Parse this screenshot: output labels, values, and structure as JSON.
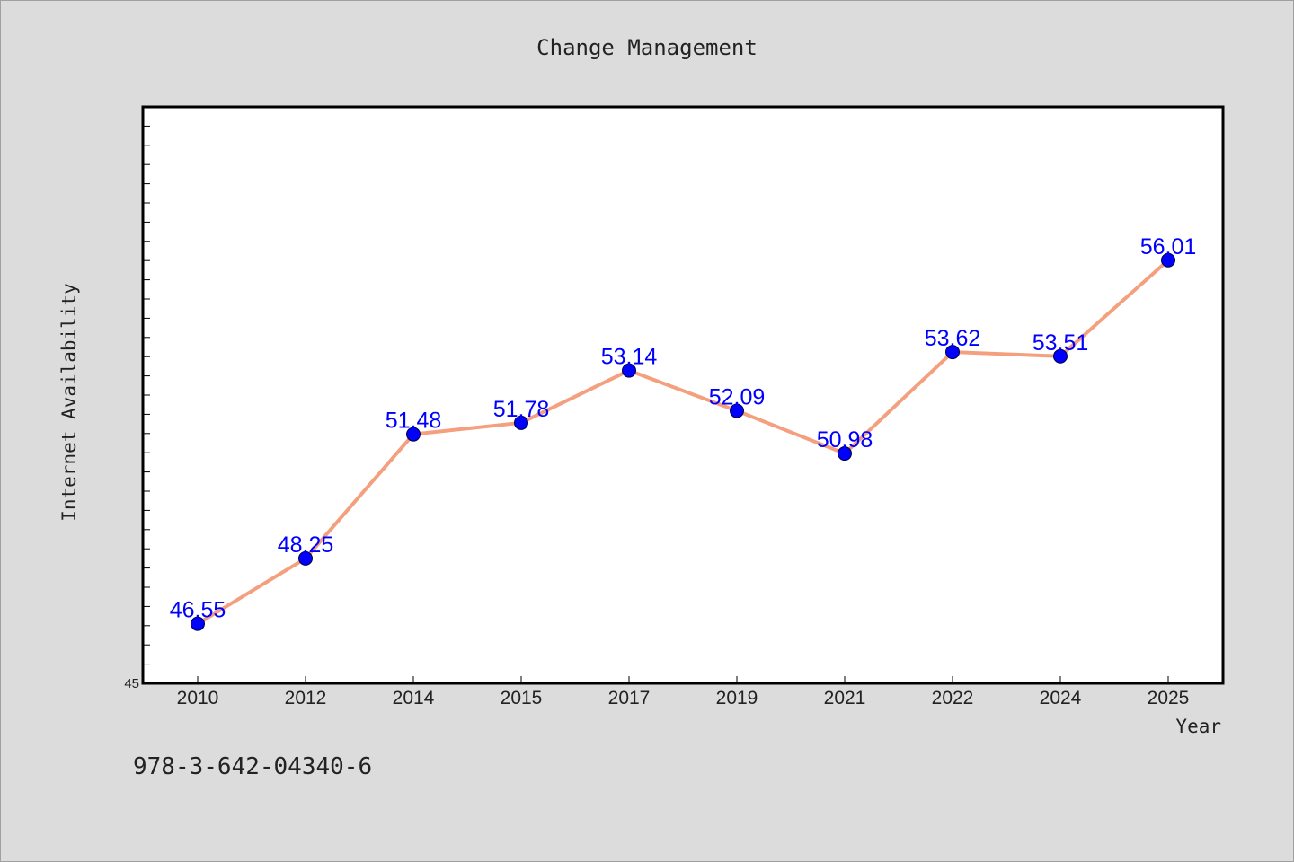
{
  "chart_data": {
    "type": "line",
    "title": "Change Management",
    "xlabel": "Year",
    "ylabel": "Internet Availability",
    "categories": [
      "2010",
      "2012",
      "2014",
      "2015",
      "2017",
      "2019",
      "2021",
      "2022",
      "2024",
      "2025"
    ],
    "series": [
      {
        "values": [
          46.55,
          48.25,
          51.48,
          51.78,
          53.14,
          52.09,
          50.98,
          53.62,
          53.51,
          56.01
        ],
        "line_color": "#f4a07e",
        "marker_color": "#0000ff"
      }
    ],
    "data_labels": [
      "46.55",
      "48.25",
      "51.48",
      "51.78",
      "53.14",
      "52.09",
      "50.98",
      "53.62",
      "53.51",
      "56.01"
    ],
    "ylim": [
      45,
      60
    ],
    "y_tick_labels": [
      "45"
    ],
    "grid": false,
    "legend": "none"
  },
  "footer": {
    "isbn": "978-3-642-04340-6"
  },
  "colors": {
    "background": "#dcdcdc",
    "plot_background": "#ffffff",
    "line": "#f4a07e",
    "marker": "#0000ff",
    "data_label": "#0000ff"
  }
}
